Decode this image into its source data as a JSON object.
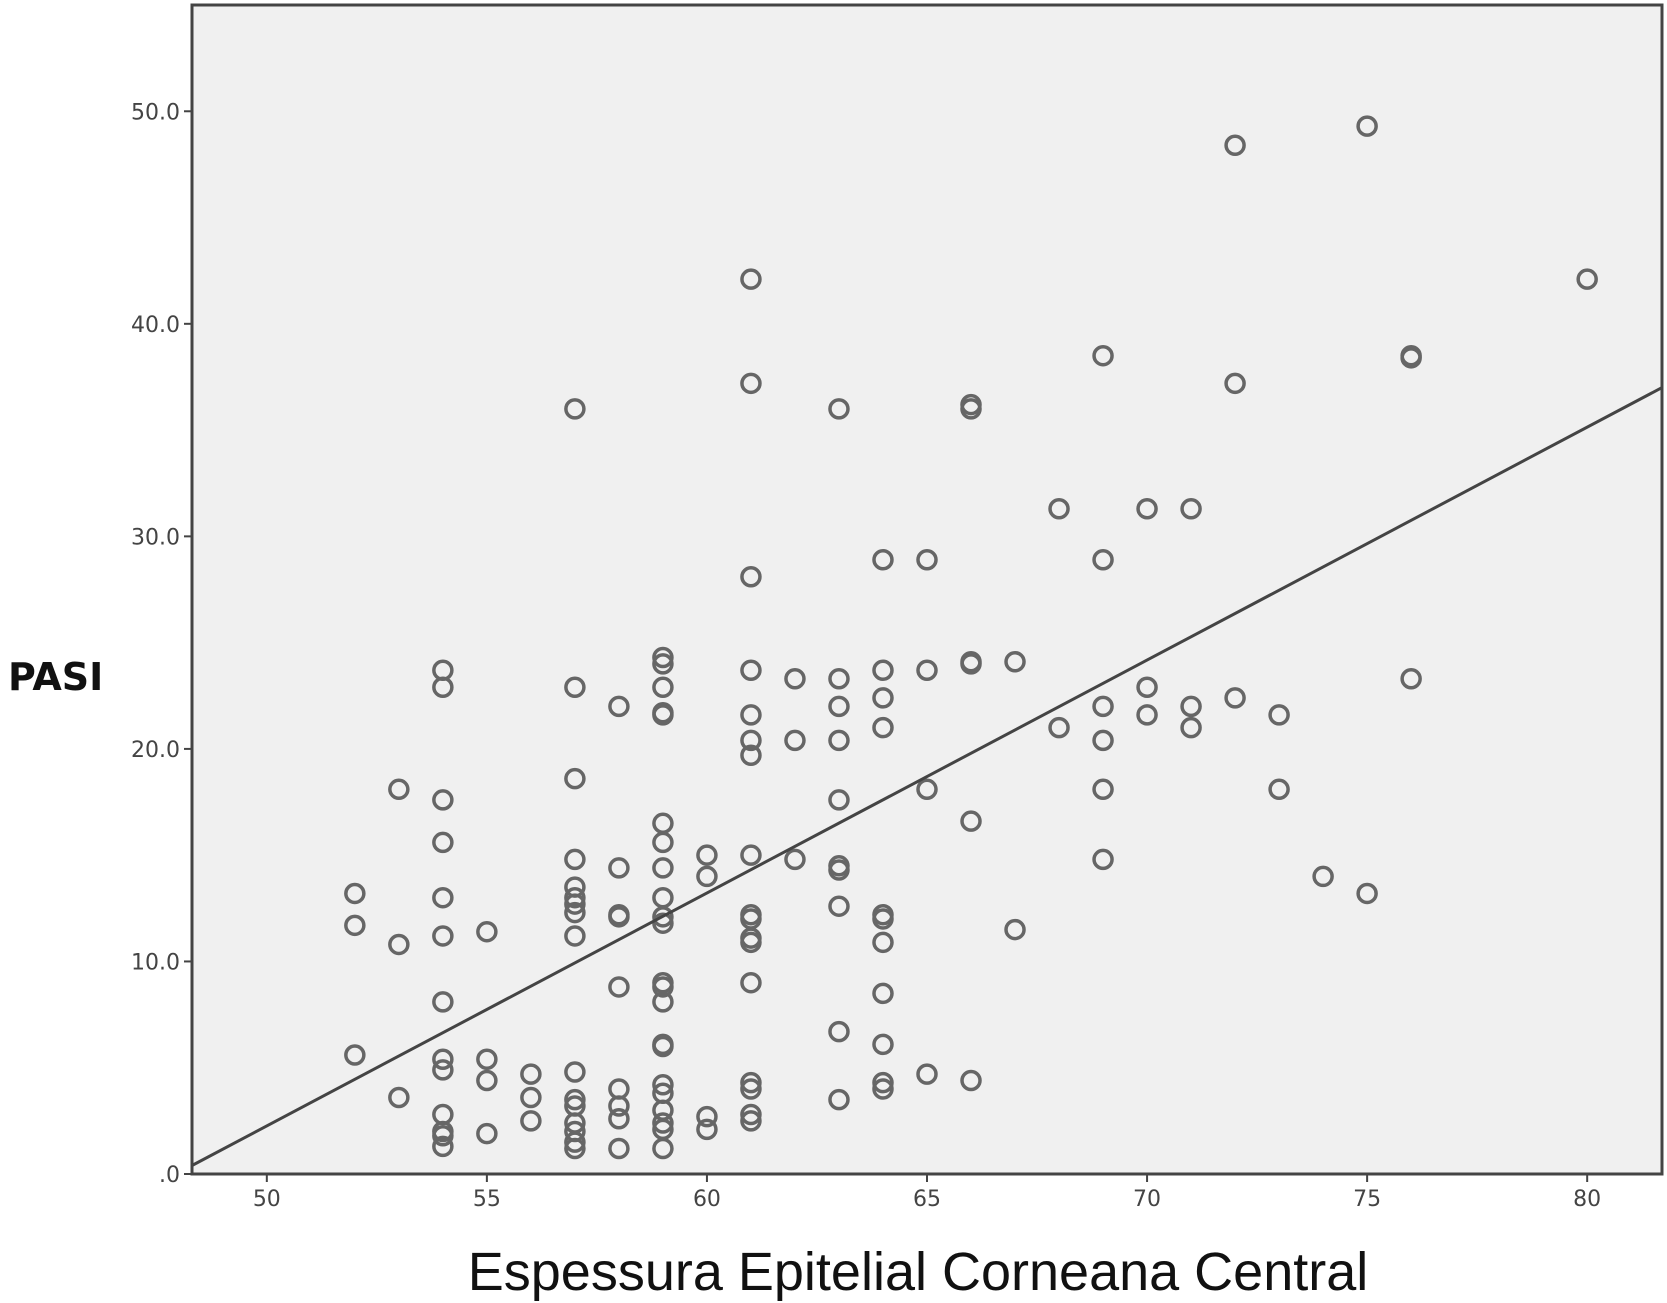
{
  "chart_data": {
    "type": "scatter",
    "title": "",
    "xlabel": "Espessura Epitelial Corneana Central",
    "ylabel": "PASI",
    "xlim": [
      48.3,
      81.7
    ],
    "ylim": [
      0,
      55
    ],
    "x_ticks": [
      50,
      55,
      60,
      65,
      70,
      75,
      80
    ],
    "x_tick_labels": [
      "50",
      "55",
      "60",
      "65",
      "70",
      "75",
      "80"
    ],
    "y_ticks": [
      0,
      10,
      20,
      30,
      40,
      50
    ],
    "y_tick_labels": [
      ".0",
      "10.0",
      "20.0",
      "30.0",
      "40.0",
      "50.0"
    ],
    "grid": false,
    "background": "#f0f0f0",
    "marker_color": "#666666",
    "fit_line": {
      "x": [
        48.3,
        81.7
      ],
      "y": [
        0.4,
        37.0
      ]
    },
    "points": [
      [
        52,
        13.2
      ],
      [
        52,
        11.7
      ],
      [
        52,
        5.6
      ],
      [
        53,
        18.1
      ],
      [
        53,
        10.8
      ],
      [
        53,
        3.6
      ],
      [
        54,
        23.7
      ],
      [
        54,
        22.9
      ],
      [
        54,
        17.6
      ],
      [
        54,
        15.6
      ],
      [
        54,
        13.0
      ],
      [
        54,
        11.2
      ],
      [
        54,
        8.1
      ],
      [
        54,
        5.4
      ],
      [
        54,
        4.9
      ],
      [
        54,
        2.8
      ],
      [
        54,
        2.0
      ],
      [
        54,
        1.8
      ],
      [
        54,
        1.3
      ],
      [
        55,
        11.4
      ],
      [
        55,
        5.4
      ],
      [
        55,
        4.4
      ],
      [
        55,
        1.9
      ],
      [
        56,
        4.7
      ],
      [
        56,
        3.6
      ],
      [
        56,
        2.5
      ],
      [
        57,
        36.0
      ],
      [
        57,
        22.9
      ],
      [
        57,
        18.6
      ],
      [
        57,
        14.8
      ],
      [
        57,
        13.5
      ],
      [
        57,
        13.0
      ],
      [
        57,
        12.7
      ],
      [
        57,
        12.3
      ],
      [
        57,
        11.2
      ],
      [
        57,
        4.8
      ],
      [
        57,
        3.5
      ],
      [
        57,
        3.2
      ],
      [
        57,
        2.4
      ],
      [
        57,
        2.0
      ],
      [
        57,
        1.5
      ],
      [
        57,
        1.2
      ],
      [
        58,
        22.0
      ],
      [
        58,
        14.4
      ],
      [
        58,
        12.2
      ],
      [
        58,
        12.1
      ],
      [
        58,
        8.8
      ],
      [
        58,
        4.0
      ],
      [
        58,
        3.2
      ],
      [
        58,
        2.6
      ],
      [
        58,
        1.2
      ],
      [
        59,
        24.3
      ],
      [
        59,
        24.0
      ],
      [
        59,
        22.9
      ],
      [
        59,
        21.7
      ],
      [
        59,
        21.6
      ],
      [
        59,
        16.5
      ],
      [
        59,
        15.6
      ],
      [
        59,
        14.4
      ],
      [
        59,
        13.0
      ],
      [
        59,
        12.1
      ],
      [
        59,
        11.8
      ],
      [
        59,
        9.0
      ],
      [
        59,
        8.8
      ],
      [
        59,
        8.1
      ],
      [
        59,
        6.1
      ],
      [
        59,
        6.0
      ],
      [
        59,
        4.2
      ],
      [
        59,
        3.8
      ],
      [
        59,
        3.0
      ],
      [
        59,
        2.4
      ],
      [
        59,
        2.1
      ],
      [
        59,
        1.2
      ],
      [
        60,
        15.0
      ],
      [
        60,
        14.0
      ],
      [
        60,
        2.7
      ],
      [
        60,
        2.1
      ],
      [
        61,
        42.1
      ],
      [
        61,
        37.2
      ],
      [
        61,
        28.1
      ],
      [
        61,
        23.7
      ],
      [
        61,
        21.6
      ],
      [
        61,
        20.4
      ],
      [
        61,
        19.7
      ],
      [
        61,
        15.0
      ],
      [
        61,
        12.2
      ],
      [
        61,
        12.0
      ],
      [
        61,
        11.1
      ],
      [
        61,
        10.9
      ],
      [
        61,
        9.0
      ],
      [
        61,
        4.3
      ],
      [
        61,
        4.0
      ],
      [
        61,
        2.8
      ],
      [
        61,
        2.5
      ],
      [
        62,
        23.3
      ],
      [
        62,
        20.4
      ],
      [
        62,
        14.8
      ],
      [
        63,
        36.0
      ],
      [
        63,
        23.3
      ],
      [
        63,
        22.0
      ],
      [
        63,
        20.4
      ],
      [
        63,
        17.6
      ],
      [
        63,
        14.5
      ],
      [
        63,
        14.3
      ],
      [
        63,
        12.6
      ],
      [
        63,
        6.7
      ],
      [
        63,
        3.5
      ],
      [
        64,
        28.9
      ],
      [
        64,
        23.7
      ],
      [
        64,
        22.4
      ],
      [
        64,
        21.0
      ],
      [
        64,
        12.2
      ],
      [
        64,
        12.0
      ],
      [
        64,
        10.9
      ],
      [
        64,
        8.5
      ],
      [
        64,
        6.1
      ],
      [
        64,
        4.3
      ],
      [
        64,
        4.0
      ],
      [
        65,
        28.9
      ],
      [
        65,
        23.7
      ],
      [
        65,
        18.1
      ],
      [
        65,
        4.7
      ],
      [
        66,
        36.2
      ],
      [
        66,
        36.0
      ],
      [
        66,
        24.1
      ],
      [
        66,
        24.0
      ],
      [
        66,
        16.6
      ],
      [
        66,
        4.4
      ],
      [
        67,
        24.1
      ],
      [
        67,
        11.5
      ],
      [
        68,
        31.3
      ],
      [
        68,
        21.0
      ],
      [
        69,
        38.5
      ],
      [
        69,
        28.9
      ],
      [
        69,
        22.0
      ],
      [
        69,
        20.4
      ],
      [
        69,
        18.1
      ],
      [
        69,
        14.8
      ],
      [
        70,
        31.3
      ],
      [
        70,
        22.9
      ],
      [
        70,
        21.6
      ],
      [
        71,
        31.3
      ],
      [
        71,
        22.0
      ],
      [
        71,
        21.0
      ],
      [
        72,
        48.4
      ],
      [
        72,
        37.2
      ],
      [
        72,
        22.4
      ],
      [
        73,
        21.6
      ],
      [
        73,
        18.1
      ],
      [
        74,
        14.0
      ],
      [
        75,
        49.3
      ],
      [
        75,
        13.2
      ],
      [
        76,
        38.5
      ],
      [
        76,
        38.4
      ],
      [
        76,
        23.3
      ],
      [
        80,
        42.1
      ]
    ]
  }
}
